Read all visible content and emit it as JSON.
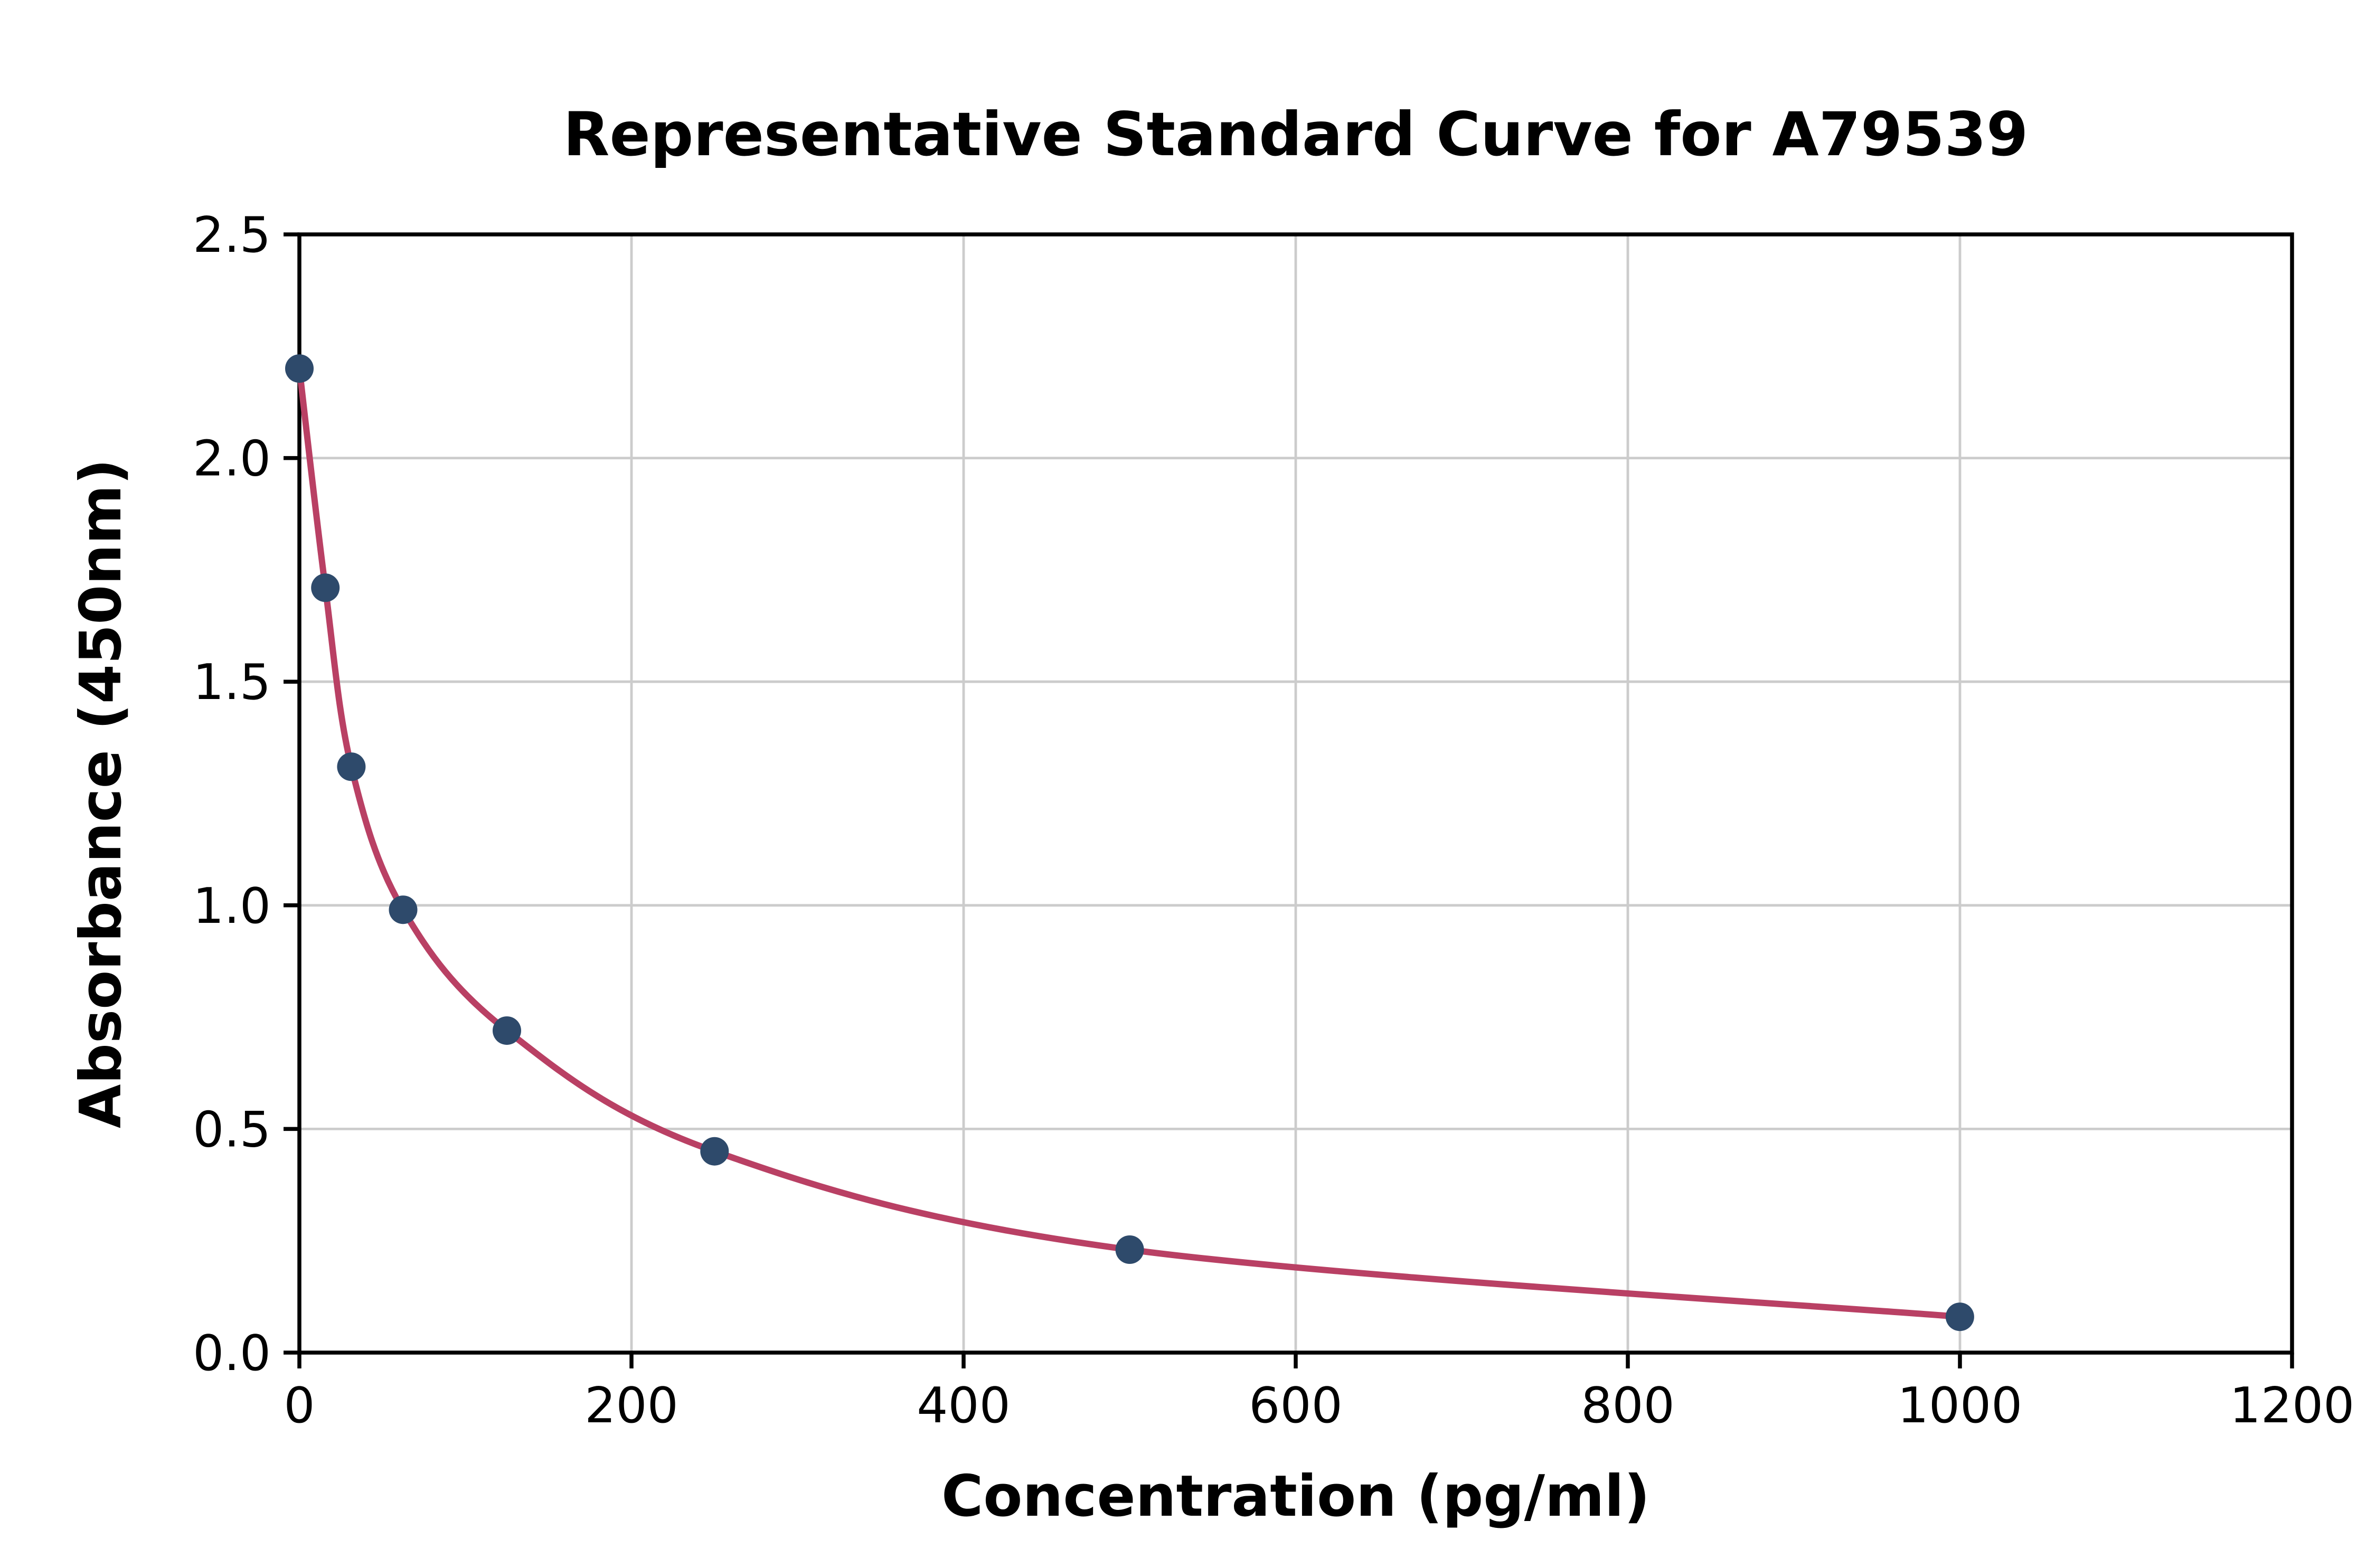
{
  "chart_data": {
    "type": "scatter",
    "title": "Representative Standard Curve for A79539",
    "xlabel": "Concentration (pg/ml)",
    "ylabel": "Absorbance (450nm)",
    "xlim": [
      0,
      1200
    ],
    "ylim": [
      0,
      2.5
    ],
    "grid": true,
    "legend": "none",
    "x_ticks": [
      0,
      200,
      400,
      600,
      800,
      1000,
      1200
    ],
    "x_tick_labels": [
      "0",
      "200",
      "400",
      "600",
      "800",
      "1000",
      "1200"
    ],
    "y_ticks": [
      0.0,
      0.5,
      1.0,
      1.5,
      2.0,
      2.5
    ],
    "y_tick_labels": [
      "0.0",
      "0.5",
      "1.0",
      "1.5",
      "2.0",
      "2.5"
    ],
    "series": [
      {
        "name": "standard-curve-points",
        "points": [
          {
            "x": 0,
            "y": 2.2
          },
          {
            "x": 15.6,
            "y": 1.71
          },
          {
            "x": 31.25,
            "y": 1.31
          },
          {
            "x": 62.5,
            "y": 0.99
          },
          {
            "x": 125,
            "y": 0.72
          },
          {
            "x": 250,
            "y": 0.45
          },
          {
            "x": 500,
            "y": 0.23
          },
          {
            "x": 1000,
            "y": 0.08
          }
        ]
      }
    ],
    "colors": {
      "curve": "#b94064",
      "points": "#2e4a6b",
      "grid": "#cccccc",
      "axis": "#000000",
      "background": "#ffffff"
    }
  }
}
